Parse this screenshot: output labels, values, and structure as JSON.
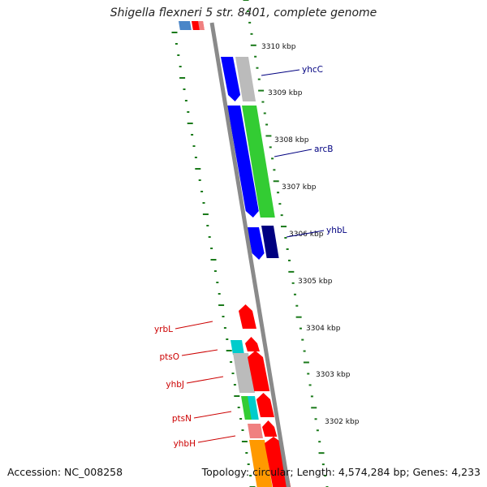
{
  "title": "Shigella flexneri 5 str. 8401, complete genome",
  "footer": {
    "accession": "Accession: NC_008258",
    "summary": "Topology: circular; Length: 4,574,284 bp; Genes: 4,233"
  },
  "colors": {
    "backbone": "#808080",
    "tick": "#1a7a1a",
    "plus_label": "#000080",
    "minus_label": "#cc0000"
  },
  "ticks": [
    {
      "label": "3310 kbp",
      "kbp": 3310
    },
    {
      "label": "3309 kbp",
      "kbp": 3309
    },
    {
      "label": "3308 kbp",
      "kbp": 3308
    },
    {
      "label": "3307 kbp",
      "kbp": 3307
    },
    {
      "label": "3306 kbp",
      "kbp": 3306
    },
    {
      "label": "3305 kbp",
      "kbp": 3305
    },
    {
      "label": "3304 kbp",
      "kbp": 3304
    },
    {
      "label": "3303 kbp",
      "kbp": 3303
    },
    {
      "label": "3302 kbp",
      "kbp": 3302
    }
  ],
  "gene_labels": [
    {
      "name": "yhcC",
      "strand": "plus"
    },
    {
      "name": "arcB",
      "strand": "plus"
    },
    {
      "name": "yhbL",
      "strand": "plus"
    },
    {
      "name": "yrbL",
      "strand": "minus"
    },
    {
      "name": "ptsO",
      "strand": "minus"
    },
    {
      "name": "yhbJ",
      "strand": "minus"
    },
    {
      "name": "ptsN",
      "strand": "minus"
    },
    {
      "name": "yhbH",
      "strand": "minus"
    }
  ],
  "features": [
    {
      "name": "top-left-blue",
      "color": "#4a86c8"
    },
    {
      "name": "top-red",
      "color": "#ff0000"
    },
    {
      "name": "top-pink",
      "color": "#f08080"
    },
    {
      "name": "yhcC-cds",
      "color": "#0000ff"
    },
    {
      "name": "yhcC-gray",
      "color": "#bbbbbb"
    },
    {
      "name": "arcB-cds",
      "color": "#0000ff"
    },
    {
      "name": "arcB-green",
      "color": "#33cc33"
    },
    {
      "name": "yhbL-cds",
      "color": "#0000ff"
    },
    {
      "name": "yhbL-navy",
      "color": "#000080"
    },
    {
      "name": "yrbL-cds",
      "color": "#ff0000"
    },
    {
      "name": "ptsO-cyan",
      "color": "#00cccc"
    },
    {
      "name": "ptsO-cds",
      "color": "#ff0000"
    },
    {
      "name": "yhbJ-gray",
      "color": "#bbbbbb"
    },
    {
      "name": "yhbJ-cds",
      "color": "#ff0000"
    },
    {
      "name": "ptsN-green",
      "color": "#33cc33"
    },
    {
      "name": "ptsN-cyan",
      "color": "#00cccc"
    },
    {
      "name": "ptsN-cds",
      "color": "#ff0000"
    },
    {
      "name": "yhbH-pink",
      "color": "#f08080"
    },
    {
      "name": "yhbH-cds",
      "color": "#ff0000"
    },
    {
      "name": "bottom-orange",
      "color": "#ff9900"
    },
    {
      "name": "bottom-red",
      "color": "#ff0000"
    }
  ]
}
